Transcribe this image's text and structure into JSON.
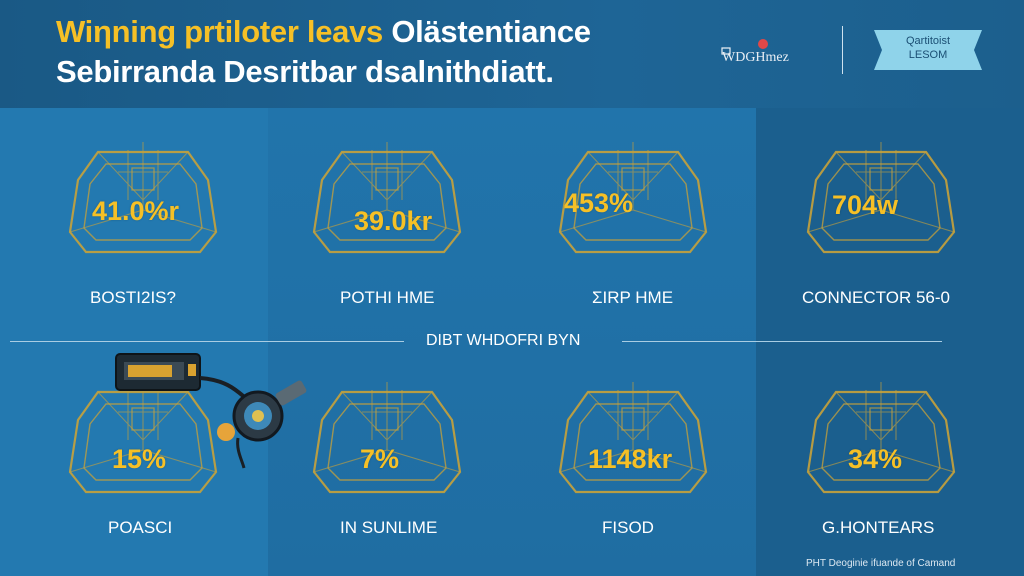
{
  "header": {
    "title_line1_accent": "Wiηning prtiloter leavs",
    "title_line1_rest": "Olästentiance",
    "title_line2": "Sebirranda Desritbar dsalnithdiatt.",
    "logo_text": "WDGHmez",
    "ribbon_line1": "Qartitoist",
    "ribbon_line2": "LESOM"
  },
  "colors": {
    "accent": "#f6c026",
    "background": "#1b5f8e",
    "panel_light": "#2379b0",
    "tile_outline": "#c8a23a"
  },
  "divider_label": "DIBT WHDOFRI BYN",
  "tiles_top": [
    {
      "value": "41.0%r",
      "label": "BOSTI2IS?"
    },
    {
      "value": "39.0kr",
      "label": "POTHI HME"
    },
    {
      "value": "453%",
      "label": "ΣIRP HME"
    },
    {
      "value": "704w",
      "label": "CONNECTOR 56-0"
    }
  ],
  "tiles_bottom": [
    {
      "value": "15%",
      "label": "POASCI"
    },
    {
      "value": "7%",
      "label": "IN SUNLIME"
    },
    {
      "value": "1148kr",
      "label": "FISOD"
    },
    {
      "value": "34%",
      "label": "G.HONTEARS"
    }
  ],
  "footer_note": "PHT Deoginie ifuande of Camand",
  "icons": {
    "tile_icon": "circuit-frame-icon",
    "device": "battery-pack-connector-icon"
  }
}
